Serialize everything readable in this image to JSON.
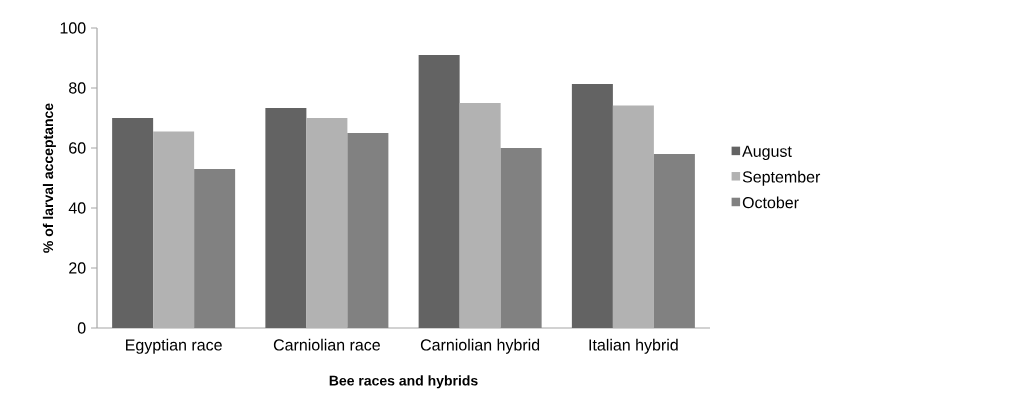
{
  "chart_data": {
    "type": "bar",
    "xlabel": "Bee races and hybrids",
    "ylabel": "% of larval acceptance",
    "categories": [
      "Egyptian race",
      "Carniolian race",
      "Carniolian hybrid",
      "Italian hybrid"
    ],
    "series": [
      {
        "name": "August",
        "color": "#636363",
        "values": [
          70,
          73.3,
          91,
          81.3
        ]
      },
      {
        "name": "September",
        "color": "#b2b2b2",
        "values": [
          65.5,
          70,
          75,
          74.2
        ]
      },
      {
        "name": "October",
        "color": "#818181",
        "values": [
          53,
          65,
          60,
          58
        ]
      }
    ],
    "ylim": [
      0,
      100
    ],
    "yticks": [
      0,
      20,
      40,
      60,
      80,
      100
    ],
    "grid": false,
    "legend": "right"
  }
}
